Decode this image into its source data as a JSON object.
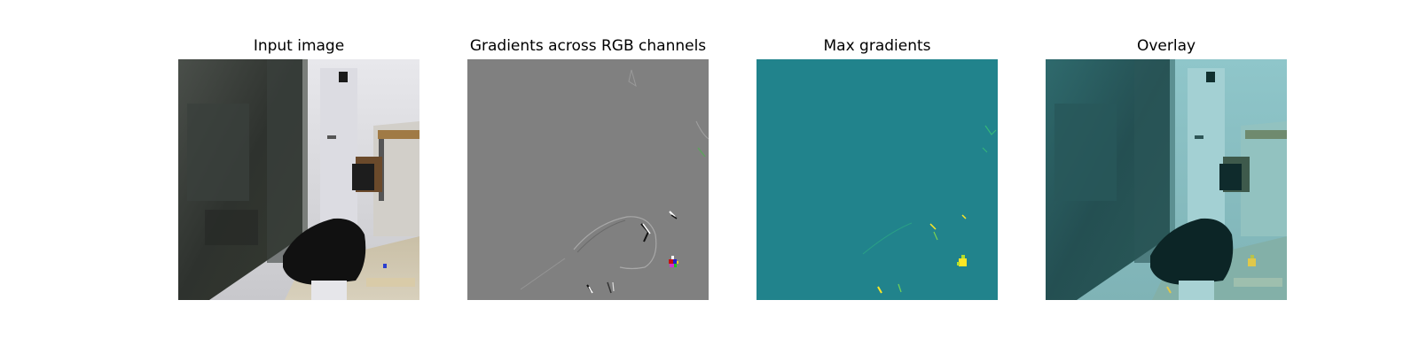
{
  "panels": [
    {
      "title": "Input image"
    },
    {
      "title": "Gradients across RGB channels"
    },
    {
      "title": "Max gradients"
    },
    {
      "title": "Overlay"
    }
  ],
  "colors": {
    "gradient_background": "#808080",
    "max_gradient_background": "#21838c",
    "max_gradient_highlight": "#fde725",
    "overlay_tint": "#3aa0a6"
  }
}
